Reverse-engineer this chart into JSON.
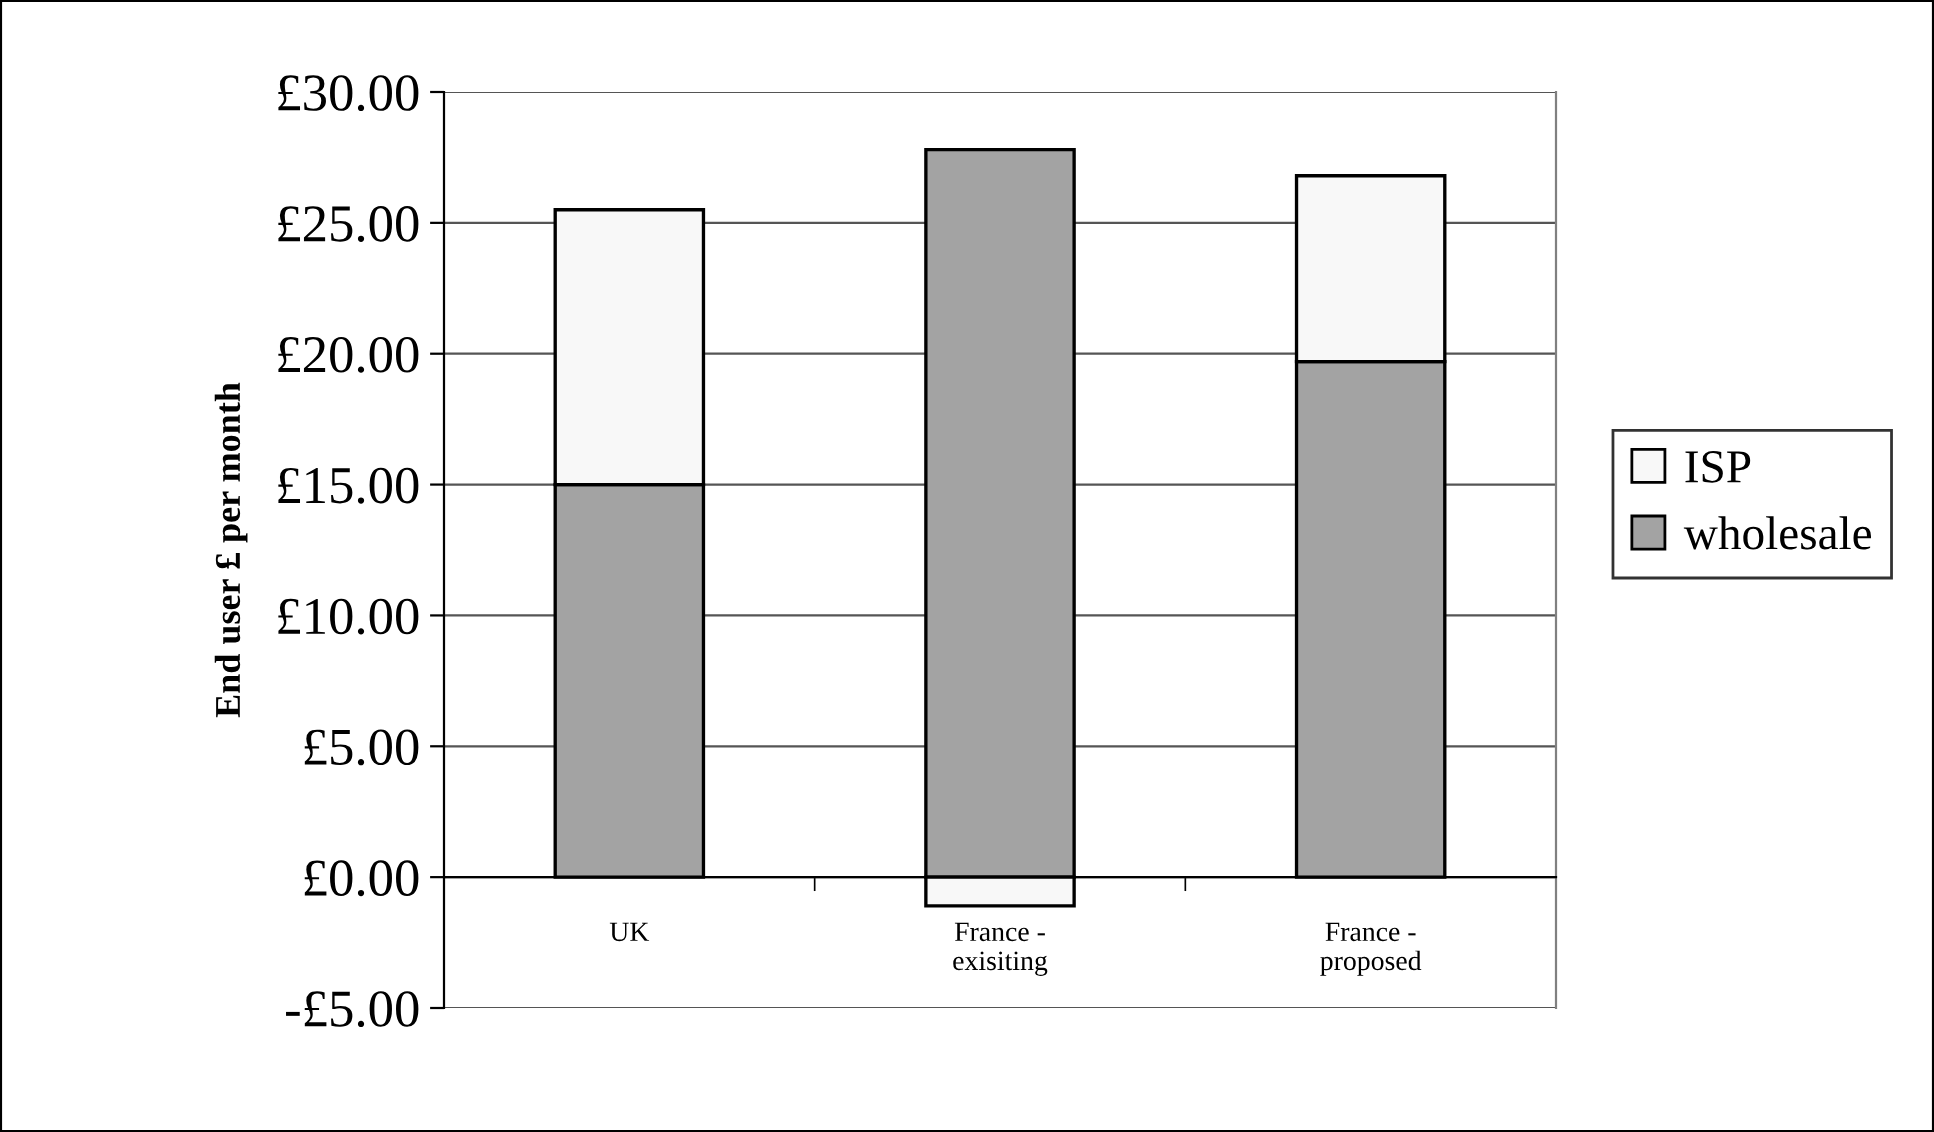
{
  "chart_data": {
    "type": "bar",
    "stacked": true,
    "ylabel": "End user £ per month",
    "categories": [
      "UK",
      "France -\nexisiting",
      "France -\nproposed"
    ],
    "series": [
      {
        "name": "wholesale",
        "color": "#a3a3a3",
        "values": [
          15.0,
          27.8,
          19.7
        ]
      },
      {
        "name": "ISP",
        "color": "#f8f8f8",
        "values": [
          10.5,
          -1.1,
          7.1
        ]
      }
    ],
    "ylim": [
      -5,
      30
    ],
    "yticks": [
      {
        "value": -5,
        "label": "-£5.00"
      },
      {
        "value": 0,
        "label": "£0.00"
      },
      {
        "value": 5,
        "label": "£5.00"
      },
      {
        "value": 10,
        "label": "£10.00"
      },
      {
        "value": 15,
        "label": "£15.00"
      },
      {
        "value": 20,
        "label": "£20.00"
      },
      {
        "value": 25,
        "label": "£25.00"
      },
      {
        "value": 30,
        "label": "£30.00"
      }
    ],
    "grid": "y",
    "legend": "right"
  }
}
